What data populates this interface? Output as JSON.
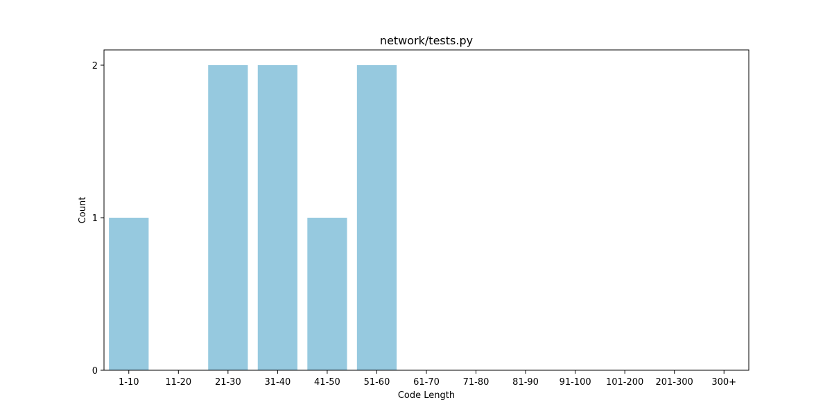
{
  "chart_data": {
    "type": "bar",
    "title": "network/tests.py",
    "xlabel": "Code Length",
    "ylabel": "Count",
    "categories": [
      "1-10",
      "11-20",
      "21-30",
      "31-40",
      "41-50",
      "51-60",
      "61-70",
      "71-80",
      "81-90",
      "91-100",
      "101-200",
      "201-300",
      "300+"
    ],
    "values": [
      1,
      0,
      2,
      2,
      1,
      2,
      0,
      0,
      0,
      0,
      0,
      0,
      0
    ],
    "ylim": [
      0,
      2.1
    ],
    "yticks": [
      0,
      1,
      2
    ],
    "grid": false,
    "colors": {
      "bar": "#96c9df",
      "axis": "#000000"
    }
  }
}
